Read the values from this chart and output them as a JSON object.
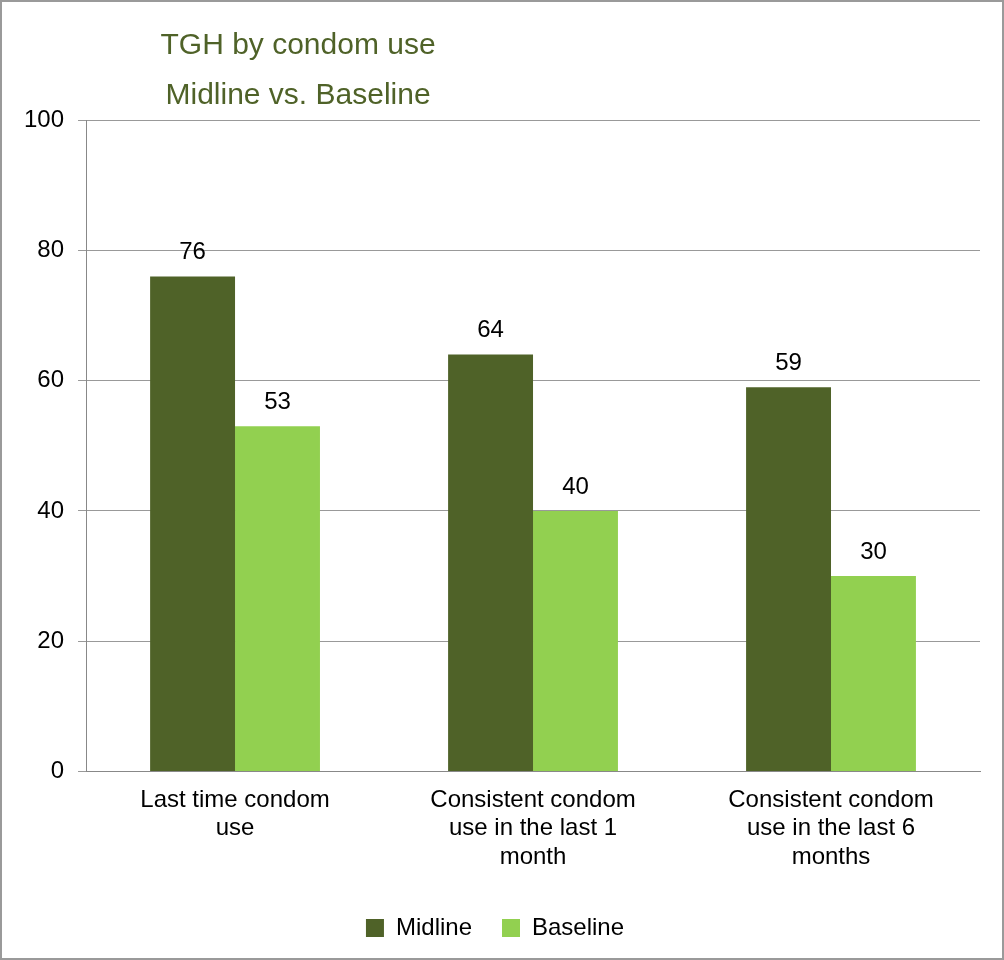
{
  "chart_data": {
    "type": "bar",
    "title": "TGH by condom use\nMidline vs. Baseline",
    "categories": [
      "Last time condom use",
      "Consistent condom use in the last 1 month",
      "Consistent condom use in the last 6 months"
    ],
    "series": [
      {
        "name": "Midline",
        "color": "#4f6228",
        "values": [
          76,
          64,
          59
        ]
      },
      {
        "name": "Baseline",
        "color": "#92d050",
        "values": [
          53,
          40,
          30
        ]
      }
    ],
    "ylim": [
      0,
      100
    ],
    "yticks": [
      0,
      20,
      40,
      60,
      80,
      100
    ],
    "grid": "y",
    "legend": "bottom",
    "data_labels": true
  }
}
